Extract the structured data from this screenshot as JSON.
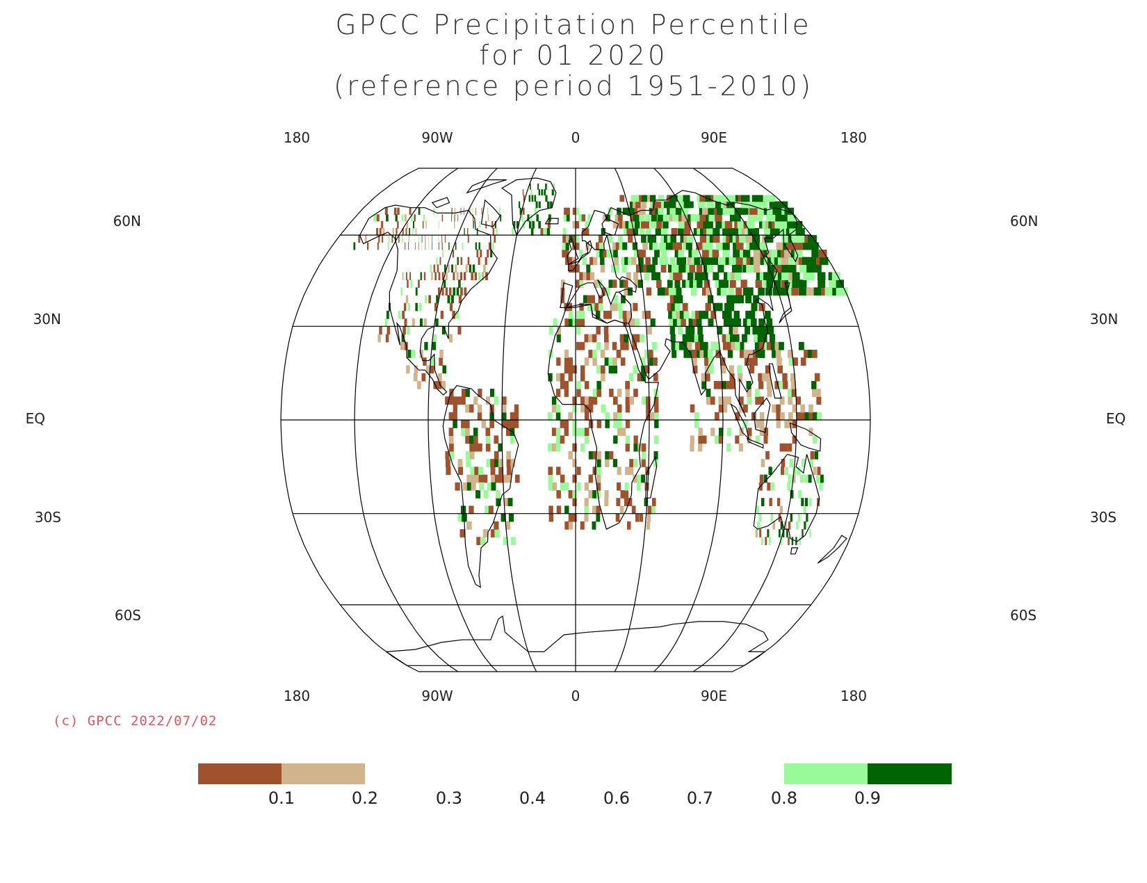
{
  "title": {
    "line1": "GPCC Precipitation Percentile",
    "line2": "for 01 2020",
    "line3": "(reference period 1951-2010)"
  },
  "map": {
    "projection": "robinson",
    "grid": true,
    "lon_labels": [
      "180",
      "90W",
      "0",
      "90E",
      "180"
    ],
    "lat_labels": [
      "60N",
      "30N",
      "EQ",
      "30S",
      "60S"
    ]
  },
  "copyright": "(c) GPCC 2022/07/02",
  "legend": {
    "ticks": [
      "0.1",
      "0.2",
      "0.3",
      "0.4",
      "0.6",
      "0.7",
      "0.8",
      "0.9"
    ],
    "colors": {
      "very_dry": "#a0522d",
      "dry": "#d2b48c",
      "wet": "#98fb98",
      "very_wet": "#006400"
    }
  },
  "colors": {
    "line": "#000000",
    "background": "#ffffff"
  }
}
